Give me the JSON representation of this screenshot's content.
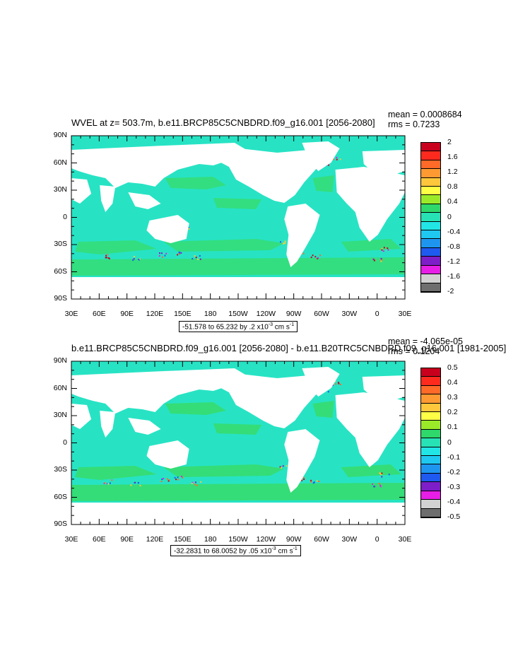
{
  "panel1": {
    "title": "WVEL at z= 503.7m, b.e11.BRCP85C5CNBDRD.f09_g16.001 [2056-2080]",
    "mean": "mean = 0.0008684",
    "rms": "rms = 0.7233",
    "range_prefix": "-51.578 to 65.232 by .2 x10",
    "range_exp": "-3",
    "range_unit": " cm s",
    "range_unit_exp": "-1",
    "colorbar_labels": [
      "2",
      "1.6",
      "1.2",
      "0.8",
      "0.4",
      "0",
      "-0.4",
      "-0.8",
      "-1.2",
      "-1.6",
      "-2"
    ]
  },
  "panel2": {
    "title": "b.e11.BRCP85C5CNBDRD.f09_g16.001 [2056-2080] - b.e11.B20TRC5CNBDRD.f09_g16.001 [1981-2005]",
    "mean": "mean = -4.065e-05",
    "rms": "rms = 0.1204",
    "range_prefix": "-32.2831 to 68.0052 by .05 x10",
    "range_exp": "-3",
    "range_unit": " cm s",
    "range_unit_exp": "-1",
    "colorbar_labels": [
      "0.5",
      "0.4",
      "0.3",
      "0.2",
      "0.1",
      "0",
      "-0.1",
      "-0.2",
      "-0.3",
      "-0.4",
      "-0.5"
    ]
  },
  "lat_labels": [
    "90N",
    "60N",
    "30N",
    "0",
    "30S",
    "60S",
    "90S"
  ],
  "lon_labels": [
    "30E",
    "60E",
    "90E",
    "120E",
    "150E",
    "180",
    "150W",
    "120W",
    "90W",
    "60W",
    "30W",
    "0",
    "30E"
  ],
  "colorbar_colors": [
    "#c8001e",
    "#ff2a1e",
    "#ff6a28",
    "#ff9a32",
    "#ffc83c",
    "#ffff46",
    "#9bea2a",
    "#2ed86a",
    "#27e2b4",
    "#22e6e6",
    "#1ec8f0",
    "#1e96f0",
    "#1e5af0",
    "#7d1ec8",
    "#e61ee6",
    "#d2d2d2",
    "#6e6e6e"
  ],
  "map_colors": {
    "ocean_main": "#27e3c4",
    "ocean_positive": "#37dc6a",
    "land": "#ffffff"
  }
}
